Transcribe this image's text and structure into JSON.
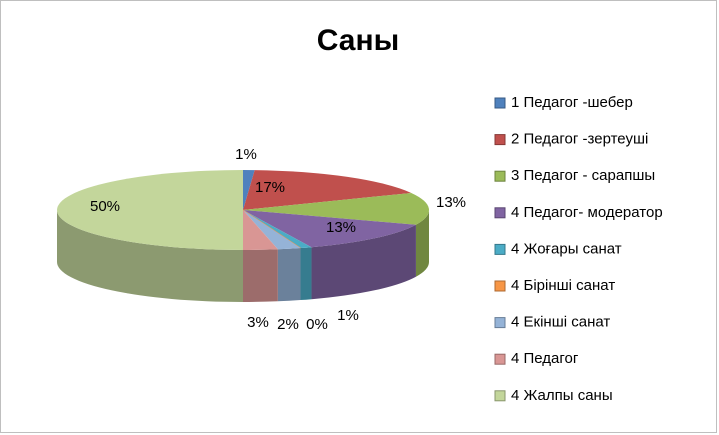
{
  "chart_data": {
    "type": "pie",
    "title": "Саны",
    "categories": [
      "1 Педагог -шебер",
      "2 Педагог -зертеуші",
      "3 Педагог - сарапшы",
      "4 Педагог- модератор",
      "4 Жоғары санат",
      "4 Бірінші санат",
      "4 Екінші санат",
      "4 Педагог",
      "4 Жалпы саны"
    ],
    "values": [
      1,
      17,
      13,
      13,
      1,
      0,
      2,
      3,
      50
    ],
    "value_labels": [
      "1%",
      "17%",
      "13%",
      "13%",
      "1%",
      "0%",
      "2%",
      "3%",
      "50%"
    ],
    "colors": [
      "#4f81bd",
      "#c0504d",
      "#9bbb59",
      "#8064a2",
      "#4bacc6",
      "#f79646",
      "#95b3d7",
      "#d99694",
      "#c3d69b"
    ],
    "legend": "right"
  }
}
